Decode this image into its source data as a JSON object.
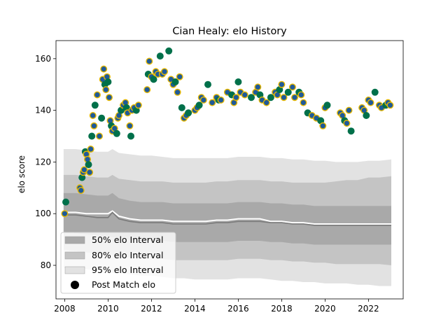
{
  "chart_data": {
    "type": "scatter",
    "title": "Cian Healy: elo History",
    "xlabel": "",
    "ylabel": "elo score",
    "xlim": [
      2007.6,
      2023.6
    ],
    "ylim": [
      67,
      167
    ],
    "xticks": [
      2008,
      2010,
      2012,
      2014,
      2016,
      2018,
      2020,
      2022
    ],
    "yticks": [
      80,
      100,
      120,
      140,
      160
    ],
    "grid": false,
    "legend_position": "lower-left",
    "legend": [
      {
        "label": "50% elo Interval",
        "color": "#a9a9a9"
      },
      {
        "label": "80% elo Interval",
        "color": "#c4c4c4"
      },
      {
        "label": "95% elo Interval",
        "color": "#e2e2e2"
      },
      {
        "label": "Post Match elo",
        "color": "#000000"
      }
    ],
    "colors": {
      "band_50": "#a9a9a9",
      "band_80": "#c4c4c4",
      "band_95": "#e2e2e2",
      "median": "#7a7a7a",
      "mean": "#ffffff",
      "point_green": "#00704a",
      "point_blue": "#1f5a99",
      "point_edge": "#e6b800"
    },
    "intervals": {
      "x": [
        2007.95,
        2008.5,
        2009.0,
        2009.5,
        2010.0,
        2010.2,
        2010.5,
        2011.0,
        2011.5,
        2012.0,
        2012.5,
        2013.0,
        2013.5,
        2014.0,
        2014.5,
        2015.0,
        2015.5,
        2016.0,
        2016.5,
        2017.0,
        2017.5,
        2018.0,
        2018.5,
        2019.0,
        2019.5,
        2020.0,
        2020.5,
        2021.0,
        2021.5,
        2022.0,
        2022.5,
        2023.05
      ],
      "median": [
        99.5,
        99.5,
        99,
        98.5,
        98.5,
        100.5,
        98,
        97,
        96.5,
        96.5,
        96.5,
        96,
        96,
        96,
        96,
        96.5,
        96.5,
        97,
        97,
        97,
        96.5,
        96.5,
        96,
        96,
        95.5,
        95.5,
        95.5,
        95.5,
        95.5,
        95.5,
        95.5,
        95.5
      ],
      "mean": [
        100.5,
        100.5,
        100,
        100,
        100,
        101,
        99,
        98,
        97.5,
        97.5,
        97.5,
        97,
        97,
        97,
        97,
        97.5,
        97.5,
        98,
        98,
        98,
        97,
        97,
        96.5,
        96.5,
        96,
        96,
        96,
        96,
        96,
        96,
        96,
        96
      ],
      "p25": [
        93,
        92.5,
        92,
        91.5,
        91,
        91,
        90.5,
        90,
        89.5,
        89.5,
        89.5,
        89,
        89,
        89,
        89,
        89,
        89,
        89.5,
        89.5,
        89.5,
        89,
        89,
        88.5,
        88.5,
        88,
        88,
        88,
        88,
        88,
        88,
        88,
        88
      ],
      "p75": [
        108,
        108,
        107.5,
        107,
        107,
        108,
        106,
        105,
        104.5,
        104.5,
        104.5,
        104,
        104,
        104,
        104,
        104,
        104,
        104.5,
        104.5,
        104.5,
        104,
        104,
        103.5,
        103.5,
        103,
        103,
        103,
        103,
        103,
        103,
        103,
        103
      ],
      "p10": [
        86,
        85.5,
        85,
        84.5,
        84.5,
        84,
        83.5,
        83,
        83,
        83,
        82.5,
        82,
        82,
        82,
        82,
        82,
        82,
        82.5,
        82.5,
        82.5,
        82,
        82,
        81.5,
        81.5,
        81,
        81,
        80.5,
        80.5,
        80.5,
        80.5,
        80.5,
        80
      ],
      "p90": [
        115,
        115,
        114.5,
        114,
        114,
        115,
        113.5,
        113,
        112.5,
        112.5,
        112.5,
        112,
        112,
        112,
        112,
        112.5,
        112.5,
        113,
        113,
        113,
        112.5,
        112.5,
        112,
        112,
        112,
        112,
        112.5,
        113,
        113,
        114,
        114,
        114.5
      ],
      "p2_5": [
        79,
        79,
        78.5,
        78,
        77.5,
        77,
        77,
        76.5,
        76,
        76,
        75.5,
        75,
        75,
        74.5,
        74.5,
        74.5,
        74.5,
        75,
        75,
        75,
        74.5,
        74,
        74,
        73.5,
        73.5,
        73,
        73,
        73,
        72.5,
        72.5,
        72,
        72
      ],
      "p97_5": [
        125,
        125,
        124.5,
        124,
        124,
        125,
        123.5,
        123,
        122.5,
        122.5,
        122,
        121.5,
        121.5,
        121.5,
        121.5,
        121.5,
        121.5,
        122,
        122,
        122,
        121.5,
        121.5,
        121,
        121,
        120.5,
        120.5,
        120,
        120,
        120,
        120.5,
        120.5,
        121
      ]
    },
    "points": {
      "x": [
        2008.0,
        2008.05,
        2008.7,
        2008.75,
        2008.8,
        2008.85,
        2008.9,
        2008.95,
        2009.0,
        2009.05,
        2009.1,
        2009.15,
        2009.2,
        2009.25,
        2009.3,
        2009.35,
        2009.4,
        2009.5,
        2009.6,
        2009.7,
        2009.75,
        2009.8,
        2009.85,
        2009.9,
        2009.95,
        2010.0,
        2010.05,
        2010.1,
        2010.15,
        2010.2,
        2010.3,
        2010.4,
        2010.45,
        2010.5,
        2010.6,
        2010.7,
        2010.8,
        2010.85,
        2010.9,
        2011.0,
        2011.05,
        2011.1,
        2011.2,
        2011.3,
        2011.4,
        2011.8,
        2011.85,
        2011.9,
        2012.0,
        2012.1,
        2012.2,
        2012.3,
        2012.4,
        2012.5,
        2012.6,
        2012.8,
        2012.9,
        2013.0,
        2013.1,
        2013.2,
        2013.3,
        2013.4,
        2013.5,
        2013.6,
        2013.7,
        2014.0,
        2014.1,
        2014.2,
        2014.3,
        2014.4,
        2014.6,
        2014.8,
        2015.0,
        2015.1,
        2015.2,
        2015.5,
        2015.7,
        2015.8,
        2015.9,
        2016.0,
        2016.1,
        2016.3,
        2016.6,
        2016.8,
        2016.9,
        2017.0,
        2017.1,
        2017.3,
        2017.5,
        2017.7,
        2017.8,
        2017.9,
        2018.0,
        2018.1,
        2018.3,
        2018.5,
        2018.6,
        2018.8,
        2018.9,
        2019.0,
        2019.2,
        2019.4,
        2019.6,
        2019.8,
        2019.9,
        2020.0,
        2020.1,
        2020.7,
        2020.8,
        2020.9,
        2021.0,
        2021.1,
        2021.2,
        2021.7,
        2021.8,
        2021.9,
        2022.0,
        2022.1,
        2022.3,
        2022.5,
        2022.6,
        2022.8,
        2022.9,
        2023.0
      ],
      "y": [
        100,
        104.5,
        110,
        109,
        114,
        116,
        117,
        124,
        123,
        121,
        119,
        116,
        125,
        130,
        138,
        134,
        142,
        146,
        130,
        137,
        152,
        156,
        150,
        148,
        153,
        151,
        145,
        136,
        134,
        132,
        133,
        131,
        137,
        138,
        140,
        142,
        143,
        141,
        139,
        134,
        130,
        140,
        141,
        140,
        142,
        148,
        154,
        159,
        153,
        152,
        155,
        154,
        161,
        154,
        155,
        163,
        152,
        150,
        151,
        147,
        153,
        141,
        137,
        138,
        139,
        140,
        141,
        142,
        145,
        144,
        150,
        143,
        145,
        144,
        144,
        147,
        146,
        143,
        145,
        151,
        147,
        146,
        145,
        147,
        149,
        146,
        144,
        143,
        145,
        147,
        146,
        148,
        150,
        145,
        147,
        149,
        145,
        147,
        146,
        143,
        139,
        138,
        137,
        136,
        134,
        141,
        142,
        139,
        138,
        136,
        135,
        140,
        132,
        141,
        140,
        138,
        144,
        143,
        147,
        142,
        141,
        142,
        143,
        142
      ]
    }
  }
}
